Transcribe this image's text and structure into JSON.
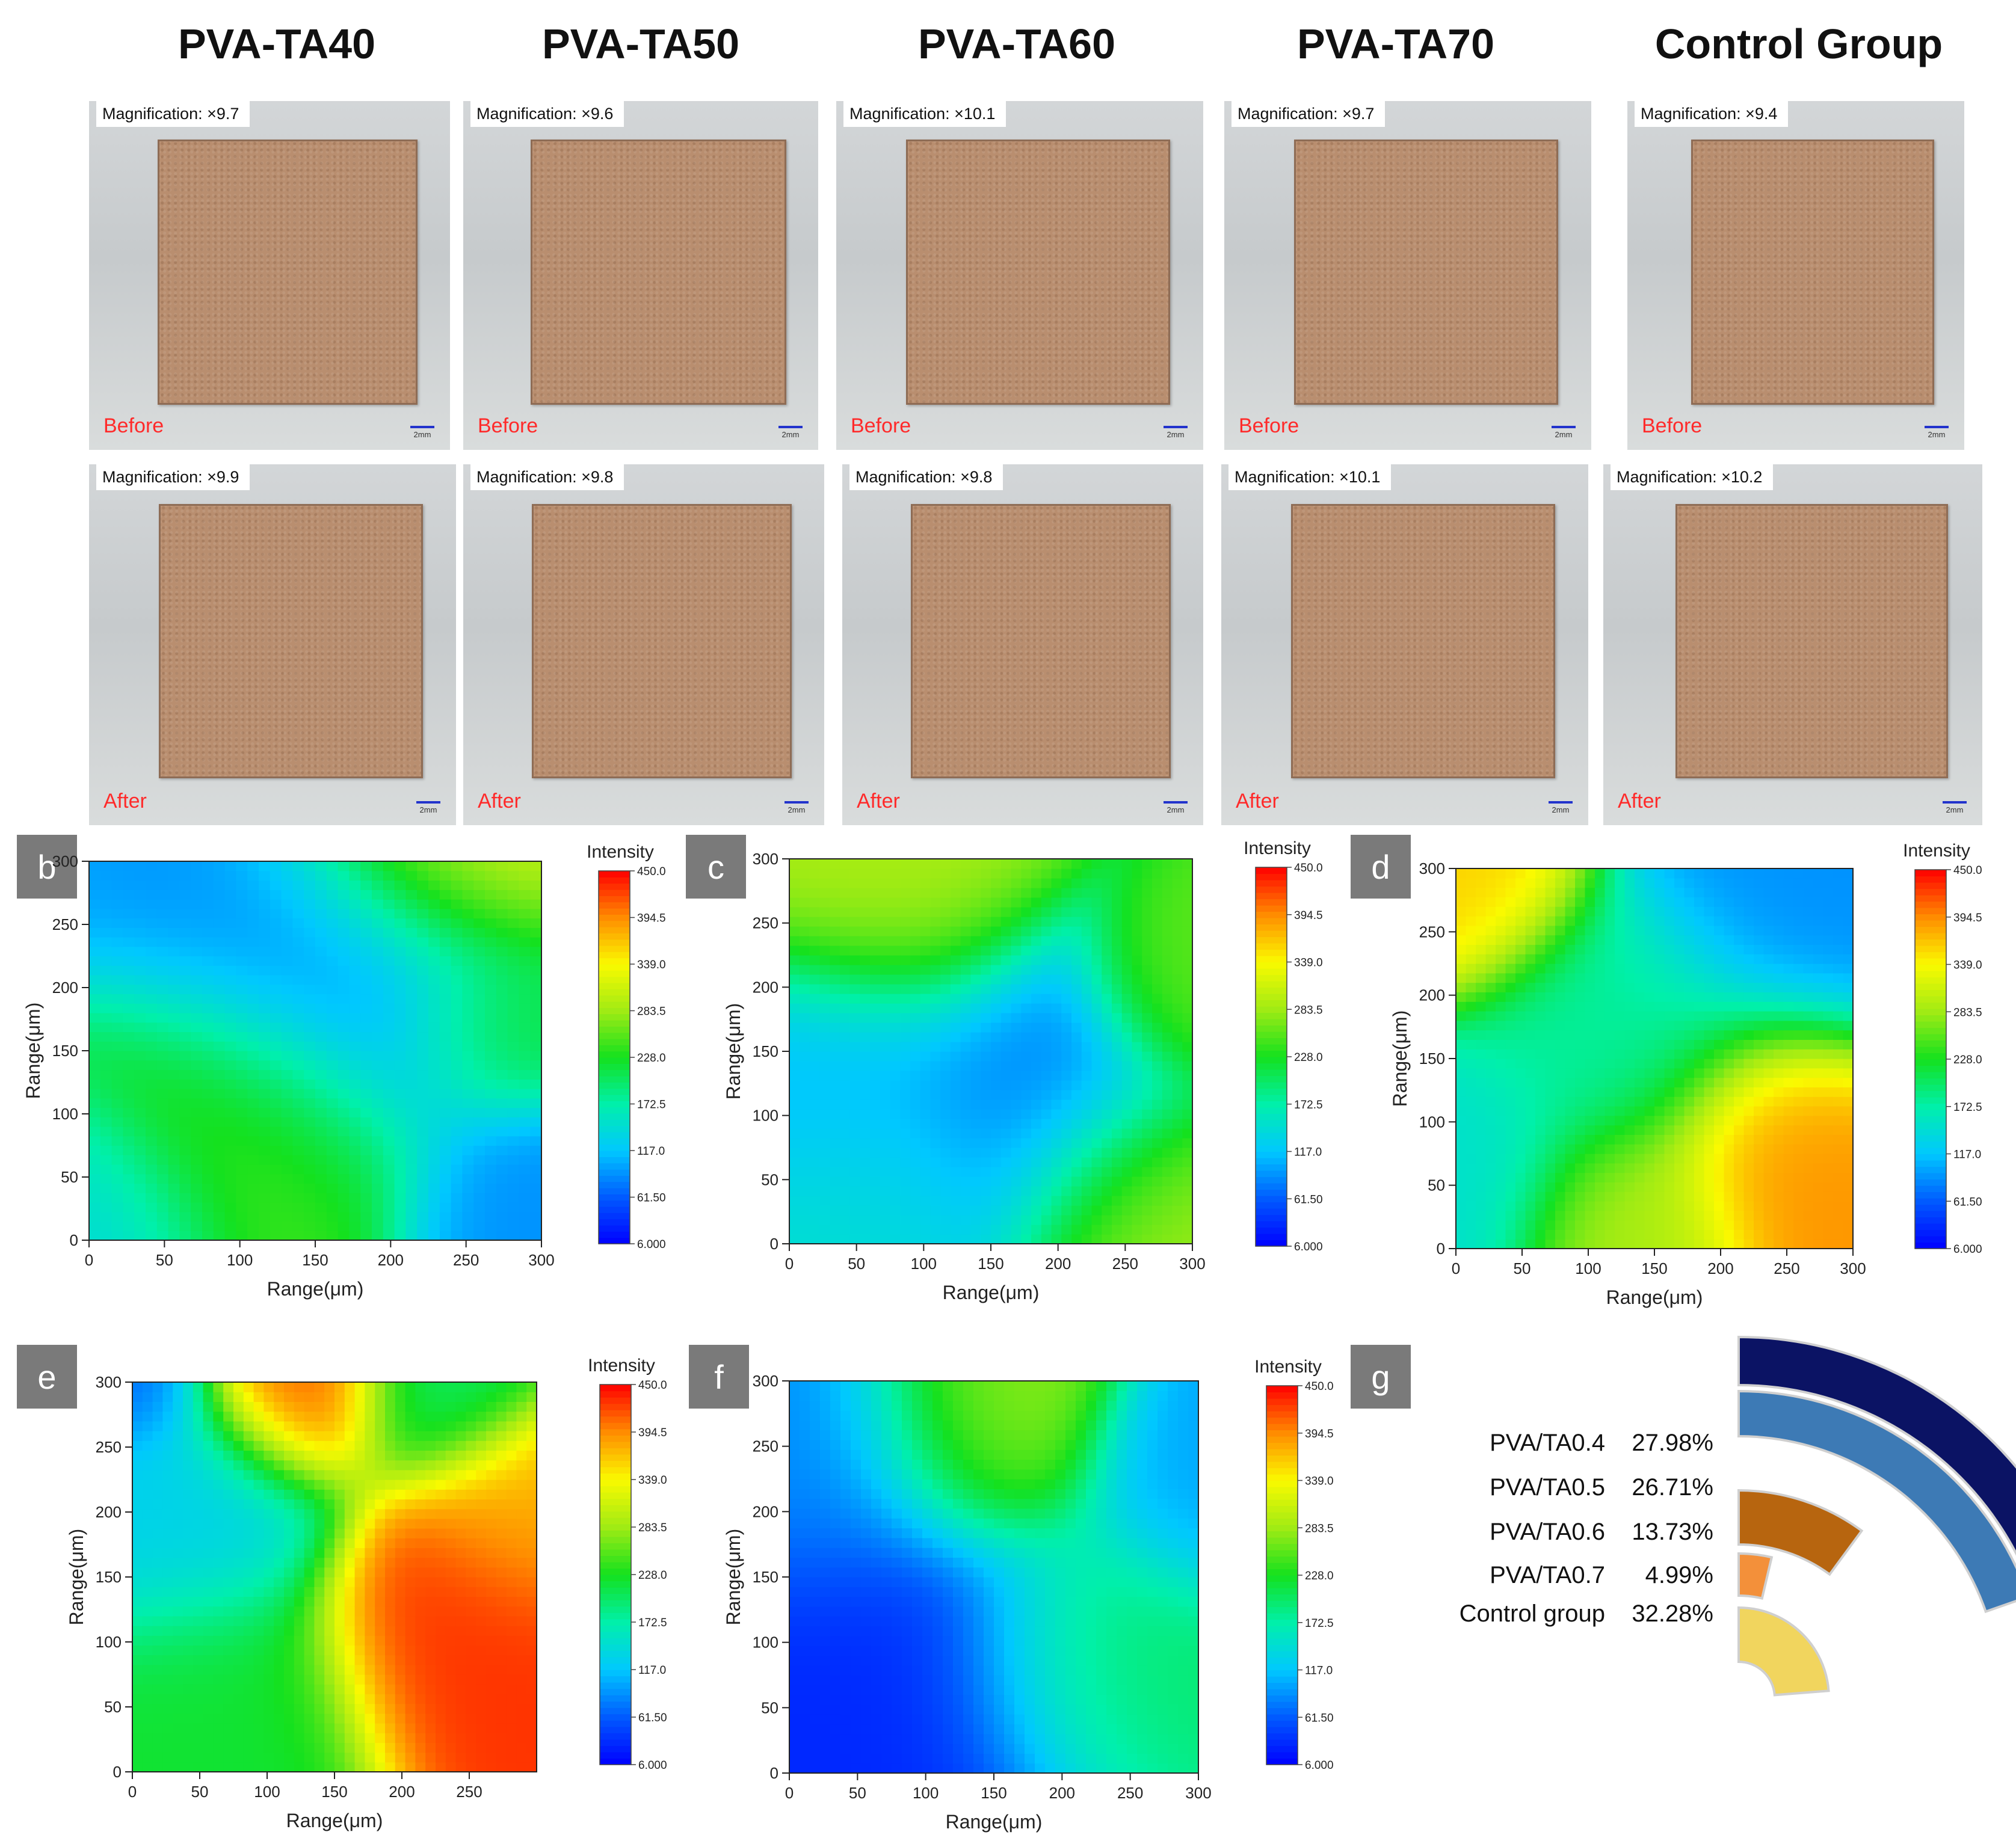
{
  "figure": {
    "column_titles": [
      "PVA-TA40",
      "PVA-TA50",
      "PVA-TA60",
      "PVA-TA70",
      "Control Group"
    ],
    "photos_before": [
      {
        "magnification": "Magnification: ×9.7",
        "label": "Before",
        "scale": "2mm"
      },
      {
        "magnification": "Magnification: ×9.6",
        "label": "Before",
        "scale": "2mm"
      },
      {
        "magnification": "Magnification: ×10.1",
        "label": "Before",
        "scale": "2mm"
      },
      {
        "magnification": "Magnification: ×9.7",
        "label": "Before",
        "scale": "2mm"
      },
      {
        "magnification": "Magnification: ×9.4",
        "label": "Before",
        "scale": "2mm"
      }
    ],
    "photos_after": [
      {
        "magnification": "Magnification: ×9.9",
        "label": "After",
        "scale": "2mm"
      },
      {
        "magnification": "Magnification: ×9.8",
        "label": "After",
        "scale": "2mm"
      },
      {
        "magnification": "Magnification: ×9.8",
        "label": "After",
        "scale": "2mm"
      },
      {
        "magnification": "Magnification: ×10.1",
        "label": "After",
        "scale": "2mm"
      },
      {
        "magnification": "Magnification: ×10.2",
        "label": "After",
        "scale": "2mm"
      }
    ],
    "panel_letters": [
      "b",
      "c",
      "d",
      "e",
      "f",
      "g"
    ]
  },
  "chart_data": [
    {
      "type": "heatmap",
      "panel": "b",
      "xlabel": "Range(μm)",
      "ylabel": "Range(μm)",
      "colorbar_label": "Intensity",
      "xlim": [
        0,
        300
      ],
      "ylim": [
        0,
        300
      ],
      "x_ticks": [
        0,
        50,
        100,
        150,
        200,
        250,
        300
      ],
      "y_ticks": [
        0,
        50,
        100,
        150,
        200,
        250,
        300
      ],
      "colorbar_ticks": [
        "6.000",
        "61.50",
        "117.0",
        "172.5",
        "228.0",
        "283.5",
        "339.0",
        "394.5",
        "450.0"
      ],
      "zlim": [
        6,
        450
      ],
      "base": 220,
      "features": [
        {
          "x": 190,
          "y": 200,
          "value": 90,
          "radius": 75
        },
        {
          "x": 260,
          "y": 300,
          "value": 330,
          "radius": 55
        },
        {
          "x": 300,
          "y": 30,
          "value": 90,
          "radius": 45
        },
        {
          "x": 0,
          "y": 20,
          "value": 140,
          "radius": 45
        },
        {
          "x": 110,
          "y": 80,
          "value": 250,
          "radius": 60
        },
        {
          "x": 280,
          "y": 170,
          "value": 240,
          "radius": 40
        }
      ]
    },
    {
      "type": "heatmap",
      "panel": "c",
      "xlabel": "Range(μm)",
      "ylabel": "Range(μm)",
      "colorbar_label": "Intensity",
      "xlim": [
        0,
        300
      ],
      "ylim": [
        0,
        300
      ],
      "x_ticks": [
        0,
        50,
        100,
        150,
        200,
        250,
        300
      ],
      "y_ticks": [
        0,
        50,
        100,
        150,
        200,
        250,
        300
      ],
      "colorbar_ticks": [
        "6.000",
        "61.50",
        "117.0",
        "172.5",
        "228.0",
        "283.5",
        "339.0",
        "394.5",
        "450.0"
      ],
      "zlim": [
        6,
        450
      ],
      "base": 200,
      "features": [
        {
          "x": 165,
          "y": 105,
          "value": 80,
          "radius": 70
        },
        {
          "x": 25,
          "y": 135,
          "value": 110,
          "radius": 55
        },
        {
          "x": 70,
          "y": 270,
          "value": 290,
          "radius": 60
        },
        {
          "x": 260,
          "y": 20,
          "value": 290,
          "radius": 55
        },
        {
          "x": 300,
          "y": 200,
          "value": 260,
          "radius": 40
        },
        {
          "x": 60,
          "y": 30,
          "value": 150,
          "radius": 60
        }
      ]
    },
    {
      "type": "heatmap",
      "panel": "d",
      "xlabel": "Range(μm)",
      "ylabel": "Range(μm)",
      "colorbar_label": "Intensity",
      "xlim": [
        0,
        300
      ],
      "ylim": [
        0,
        300
      ],
      "x_ticks": [
        0,
        50,
        100,
        150,
        200,
        250,
        300
      ],
      "y_ticks": [
        0,
        50,
        100,
        150,
        200,
        250,
        300
      ],
      "colorbar_ticks": [
        "6.000",
        "61.50",
        "117.0",
        "172.5",
        "228.0",
        "283.5",
        "339.0",
        "394.5",
        "450.0"
      ],
      "zlim": [
        6,
        450
      ],
      "base": 240,
      "features": [
        {
          "x": 255,
          "y": 85,
          "value": 390,
          "radius": 55
        },
        {
          "x": 10,
          "y": 290,
          "value": 360,
          "radius": 45
        },
        {
          "x": 270,
          "y": 280,
          "value": 90,
          "radius": 70
        },
        {
          "x": 0,
          "y": 60,
          "value": 150,
          "radius": 50
        },
        {
          "x": 120,
          "y": 170,
          "value": 180,
          "radius": 60
        },
        {
          "x": 130,
          "y": 20,
          "value": 290,
          "radius": 45
        }
      ]
    },
    {
      "type": "heatmap",
      "panel": "e",
      "xlabel": "Range(μm)",
      "ylabel": "Range(μm)",
      "colorbar_label": "Intensity",
      "xlim": [
        0,
        300
      ],
      "ylim": [
        0,
        300
      ],
      "x_ticks": [
        0,
        50,
        100,
        150,
        200,
        250
      ],
      "y_ticks": [
        0,
        50,
        100,
        150,
        200,
        250,
        300
      ],
      "colorbar_ticks": [
        "6.000",
        "61.50",
        "117.0",
        "172.5",
        "228.0",
        "283.5",
        "339.0",
        "394.5",
        "450.0"
      ],
      "zlim": [
        6,
        450
      ],
      "base": 280,
      "features": [
        {
          "x": 260,
          "y": 105,
          "value": 430,
          "radius": 60
        },
        {
          "x": 300,
          "y": 200,
          "value": 370,
          "radius": 45
        },
        {
          "x": 120,
          "y": 300,
          "value": 430,
          "radius": 40
        },
        {
          "x": 30,
          "y": 210,
          "value": 130,
          "radius": 60
        },
        {
          "x": 0,
          "y": 300,
          "value": 60,
          "radius": 30
        },
        {
          "x": 60,
          "y": 40,
          "value": 220,
          "radius": 60
        },
        {
          "x": 230,
          "y": 300,
          "value": 200,
          "radius": 40
        }
      ]
    },
    {
      "type": "heatmap",
      "panel": "f",
      "xlabel": "Range(μm)",
      "ylabel": "Range(μm)",
      "colorbar_label": "Intensity",
      "xlim": [
        0,
        300
      ],
      "ylim": [
        0,
        300
      ],
      "x_ticks": [
        0,
        50,
        100,
        150,
        200,
        250,
        300
      ],
      "y_ticks": [
        0,
        50,
        100,
        150,
        200,
        250,
        300
      ],
      "colorbar_ticks": [
        "6.000",
        "61.50",
        "117.0",
        "172.5",
        "228.0",
        "283.5",
        "339.0",
        "394.5",
        "450.0"
      ],
      "zlim": [
        6,
        450
      ],
      "base": 210,
      "features": [
        {
          "x": 65,
          "y": 70,
          "value": 30,
          "radius": 85
        },
        {
          "x": 20,
          "y": 230,
          "value": 90,
          "radius": 60
        },
        {
          "x": 300,
          "y": 220,
          "value": 100,
          "radius": 45
        },
        {
          "x": 140,
          "y": 260,
          "value": 280,
          "radius": 50
        },
        {
          "x": 230,
          "y": 90,
          "value": 200,
          "radius": 60
        }
      ]
    },
    {
      "type": "pie",
      "panel": "g",
      "categories": [
        "PVA/TA0.4",
        "PVA/TA0.5",
        "PVA/TA0.6",
        "PVA/TA0.7",
        "Control group"
      ],
      "values": [
        27.98,
        26.71,
        13.73,
        4.99,
        32.28
      ],
      "value_labels": [
        "27.98%",
        "26.71%",
        "13.73%",
        "4.99%",
        "32.28%"
      ],
      "colors": [
        "#0b1364",
        "#3d7ab5",
        "#b7650f",
        "#f3903a",
        "#f1d55e"
      ]
    }
  ]
}
